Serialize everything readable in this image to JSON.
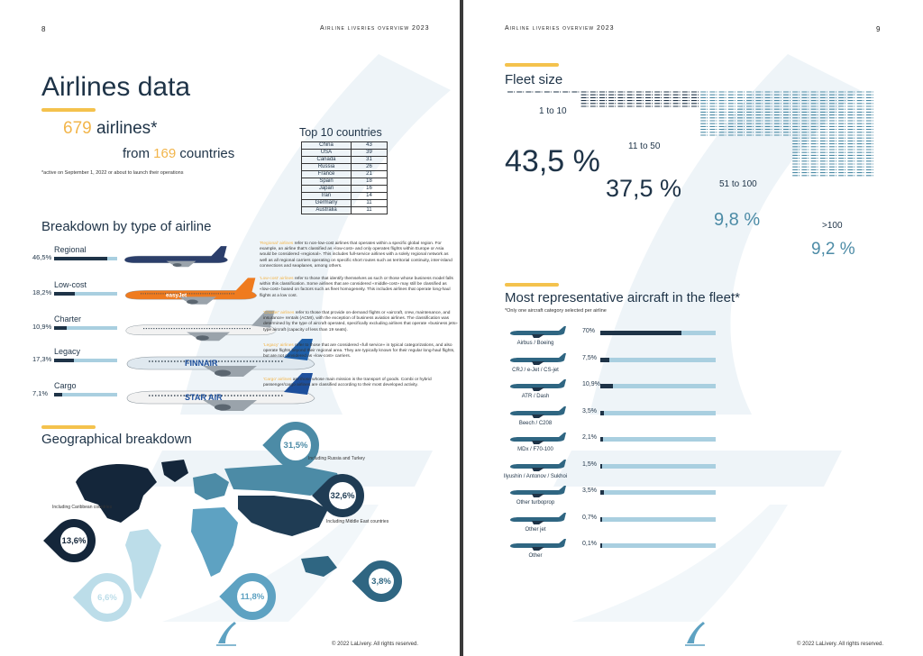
{
  "left_page": {
    "page_number": "8",
    "running_head": "Airline liveries overview 2023",
    "title": "Airlines data",
    "airlines_count": "679",
    "airlines_word": "airlines*",
    "countries_prefix": "from",
    "countries_count": "169",
    "countries_word": "countries",
    "footnote": "*active on September 1, 2022 or about to launch their operations",
    "top10": {
      "title": "Top 10 countries",
      "rows": [
        {
          "country": "China",
          "count": "43"
        },
        {
          "country": "USA",
          "count": "39"
        },
        {
          "country": "Canada",
          "count": "31"
        },
        {
          "country": "Russia",
          "count": "26"
        },
        {
          "country": "France",
          "count": "21"
        },
        {
          "country": "Spain",
          "count": "18"
        },
        {
          "country": "Japan",
          "count": "16"
        },
        {
          "country": "Iran",
          "count": "14"
        },
        {
          "country": "Germany",
          "count": "11"
        },
        {
          "country": "Australia",
          "count": "11"
        }
      ]
    },
    "breakdown": {
      "title": "Breakdown by type of airline",
      "rows": [
        {
          "label": "Regional",
          "pct": "46,5%",
          "value": 46.5,
          "highlight": "'Regional' airlines",
          "desc": "refer to non-low-cost airlines that operates within a specific global region. For example, an airline that's classified as «low-cost» and only operates flights within Europe or Asia would be considered «regional». This includes full-service airlines with a solely regional network as well as all regional carriers operating on specific short routes such as territorial continuity, inter-island connections and seaplanes, among others.",
          "livery": "#2b3e6b",
          "tail": "#2b3e6b"
        },
        {
          "label": "Low-cost",
          "pct": "18,2%",
          "value": 18.2,
          "highlight": "'Low-cost' airlines",
          "desc": "refer to those that identify themselves as such or those whose business model falls within this classification. Some airlines that are considered «middle-cost» may still be classified as «low-cost» based on factors such as fleet homogeneity. This includes airlines that operate long-haul flights at a low cost.",
          "livery": "#ef7b1f",
          "tail": "#ef7b1f"
        },
        {
          "label": "Charter",
          "pct": "10,9%",
          "value": 10.9,
          "highlight": "'Charter' airlines",
          "desc": "refer to those that provide on-demand flights or «aircraft, crew, maintenance, and insurance» rentals (ACMI), with the exception of business aviation airlines. The classification was determined by the type of aircraft operated, specifically excluding airlines that operate «business jets» type aircraft (capacity of less than 19 seats).",
          "livery": "#f2f2f2",
          "tail": "#9aa3ab"
        },
        {
          "label": "Legacy",
          "pct": "17,3%",
          "value": 17.3,
          "highlight": "'Legacy' airlines",
          "desc": "refer to those that are considered «full service» in typical categorizations, and also operate flights beyond their regional area. They are typically known for their regular long-haul flights, but are not considered as «low-cost» carriers.",
          "livery": "#dfe8ef",
          "tail": "#1f5fa8"
        },
        {
          "label": "Cargo",
          "pct": "7,1%",
          "value": 7.1,
          "highlight": "'Cargo' airlines",
          "desc": "are those whose main mission is the transport of goods. Combi or hybrid passenger/cargo airlines are classified according to their most developed activity.",
          "livery": "#f2f2f2",
          "tail": "#1d4f9c"
        }
      ]
    },
    "plane_brands": {
      "lowcost": "easyJet",
      "legacy": "FINNAIR",
      "cargo": "STAR AIR"
    },
    "geo": {
      "title": "Geographical breakdown",
      "regions": [
        {
          "pct": "31,5%",
          "note": "Including Russia and Turkey",
          "color": "#4c8ba6",
          "text_color": "#ffffff"
        },
        {
          "pct": "32,6%",
          "note": "Including Middle East countries",
          "color": "#1f3c54",
          "text_color": "#ffffff"
        },
        {
          "pct": "13,6%",
          "note": "Including Caribbean countries",
          "color": "#14263a",
          "text_color": "#ffffff"
        },
        {
          "pct": "6,6%",
          "note": "",
          "color": "#bcdde9",
          "text_color": "#ffffff"
        },
        {
          "pct": "11,8%",
          "note": "",
          "color": "#5ea2c2",
          "text_color": "#ffffff"
        },
        {
          "pct": "3,8%",
          "note": "",
          "color": "#2f6682",
          "text_color": "#ffffff"
        }
      ]
    },
    "copyright": "© 2022 LaLivery. All rights reserved."
  },
  "right_page": {
    "page_number": "9",
    "running_head": "Airline liveries overview 2023",
    "fleet": {
      "title": "Fleet size",
      "groups": [
        {
          "label": "1 to 10",
          "pct": "43,5 %",
          "value": 43.5
        },
        {
          "label": "11 to 50",
          "pct": "37,5 %",
          "value": 37.5
        },
        {
          "label": "51 to 100",
          "pct": "9,8 %",
          "value": 9.8
        },
        {
          "label": ">100",
          "pct": "9,2 %",
          "value": 9.2
        }
      ]
    },
    "aircraft": {
      "title": "Most representative aircraft in the fleet*",
      "note": "*Only one aircraft category selected per airline",
      "rows": [
        {
          "label": "Airbus / Boeing",
          "pct": "70%",
          "value": 70
        },
        {
          "label": "CRJ / e-Jet / CS-jet",
          "pct": "7,5%",
          "value": 7.5
        },
        {
          "label": "ATR / Dash",
          "pct": "10,9%",
          "value": 10.9
        },
        {
          "label": "Beech / C208",
          "pct": "3,5%",
          "value": 3.5
        },
        {
          "label": "MDx / F70-100",
          "pct": "2,1%",
          "value": 2.1
        },
        {
          "label": "Ilyushin / Antonov / Sukhoi",
          "pct": "1,5%",
          "value": 1.5
        },
        {
          "label": "Other turboprop",
          "pct": "3,5%",
          "value": 3.5
        },
        {
          "label": "Other jet",
          "pct": "0,7%",
          "value": 0.7
        },
        {
          "label": "Other",
          "pct": "0,1%",
          "value": 0.1
        }
      ]
    },
    "copyright": "© 2022 LaLivery. All rights reserved."
  },
  "colors": {
    "navy": "#1e3347",
    "accent": "#f4c24d",
    "light_blue": "#a9cfe0",
    "mid_blue": "#4c8ba6"
  }
}
